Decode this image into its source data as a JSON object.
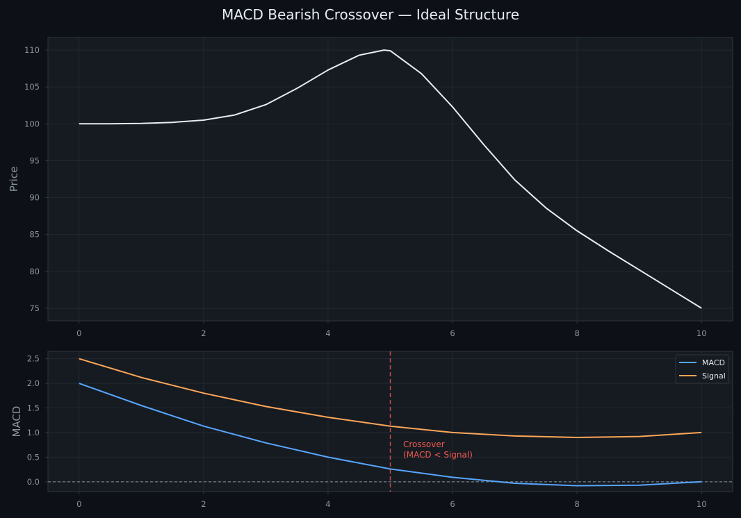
{
  "title": "MACD Bearish Crossover — Ideal Structure",
  "chart_data": [
    {
      "type": "line",
      "panel": "price",
      "ylabel": "Price",
      "xlabel": "",
      "xlim": [
        -0.5,
        10.5
      ],
      "ylim": [
        73.3,
        111.7
      ],
      "xticks": [
        "0",
        "2",
        "4",
        "6",
        "8",
        "10"
      ],
      "yticks": [
        "75",
        "80",
        "85",
        "90",
        "95",
        "100",
        "105",
        "110"
      ],
      "grid": true,
      "series": [
        {
          "color": "#e6edf3",
          "x": [
            0,
            0.5,
            1,
            1.5,
            2,
            2.5,
            3,
            3.5,
            4,
            4.5,
            4.9,
            5.0,
            5.5,
            6,
            6.5,
            7,
            7.5,
            8,
            8.5,
            9,
            9.5,
            10
          ],
          "values": [
            100,
            100,
            100.05,
            100.2,
            100.5,
            101.2,
            102.6,
            104.8,
            107.3,
            109.3,
            110,
            109.9,
            106.8,
            102.3,
            97.2,
            92.4,
            88.6,
            85.5,
            82.8,
            80.2,
            77.6,
            75
          ]
        }
      ]
    },
    {
      "type": "line",
      "panel": "macd",
      "ylabel": "MACD",
      "xlabel": "",
      "xlim": [
        -0.5,
        10.5
      ],
      "ylim": [
        -0.2,
        2.65
      ],
      "xticks": [
        "0",
        "2",
        "4",
        "6",
        "8",
        "10"
      ],
      "yticks": [
        "0.0",
        "0.5",
        "1.0",
        "1.5",
        "2.0",
        "2.5"
      ],
      "grid": true,
      "legend": "top-right",
      "zero_line": 0,
      "crossover_x": 5,
      "annotation": [
        "Crossover",
        "(MACD < Signal)"
      ],
      "series": [
        {
          "name": "MACD",
          "color": "#58a6ff",
          "x": [
            0,
            1,
            2,
            3,
            4,
            5,
            6,
            7,
            8,
            9,
            10
          ],
          "values": [
            2.0,
            1.55,
            1.13,
            0.79,
            0.5,
            0.26,
            0.09,
            -0.03,
            -0.08,
            -0.07,
            0.0
          ]
        },
        {
          "name": "Signal",
          "color": "#ffa657",
          "x": [
            0,
            1,
            2,
            3,
            4,
            5,
            6,
            7,
            8,
            9,
            10
          ],
          "values": [
            2.5,
            2.12,
            1.8,
            1.53,
            1.31,
            1.13,
            1.0,
            0.93,
            0.9,
            0.92,
            1.0
          ]
        }
      ]
    }
  ]
}
